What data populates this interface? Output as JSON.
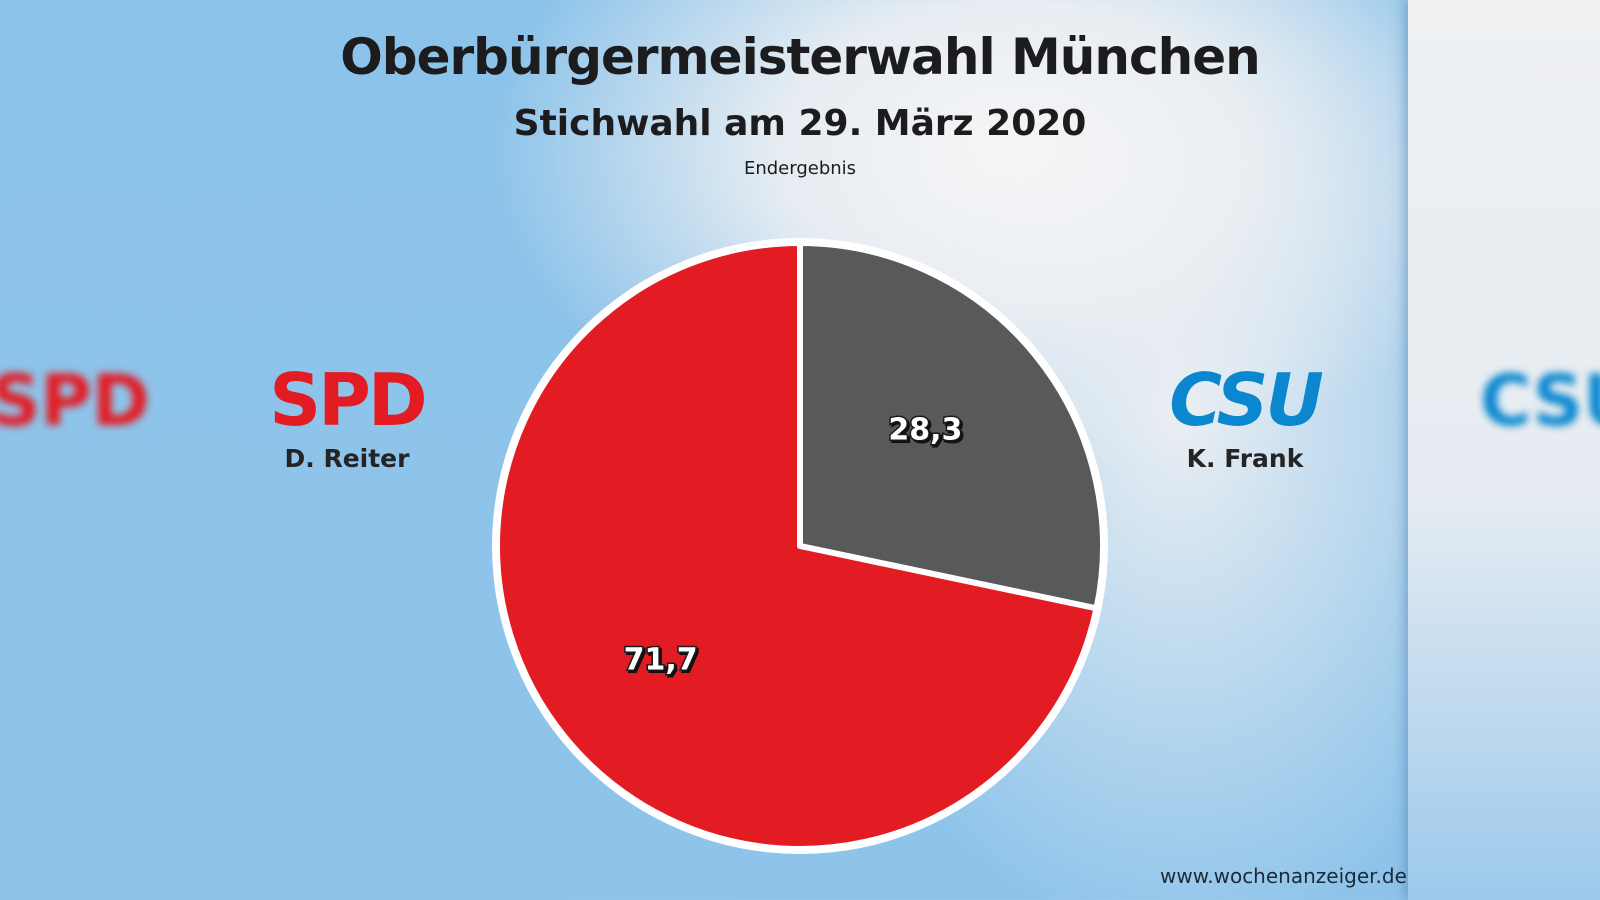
{
  "chart_data": {
    "type": "pie",
    "title": "Oberbürgermeisterwahl München",
    "subtitle": "Stichwahl am 29. März 2020",
    "note": "Endergebnis",
    "slices": [
      {
        "party": "CSU",
        "candidate": "K. Frank",
        "value": 28.3,
        "label": "28,3",
        "color": "#58595b"
      },
      {
        "party": "SPD",
        "candidate": "D. Reiter",
        "value": 71.7,
        "label": "71,7",
        "color": "#e31b23"
      }
    ],
    "start": "12 o'clock, clockwise"
  },
  "legend": {
    "spd": {
      "logo": "SPD",
      "candidate": "D. Reiter",
      "color": "#e31b23"
    },
    "csu": {
      "logo": "CSU",
      "candidate": "K. Frank",
      "color": "#0a87cf"
    }
  },
  "source": "www.wochenanzeiger.de"
}
